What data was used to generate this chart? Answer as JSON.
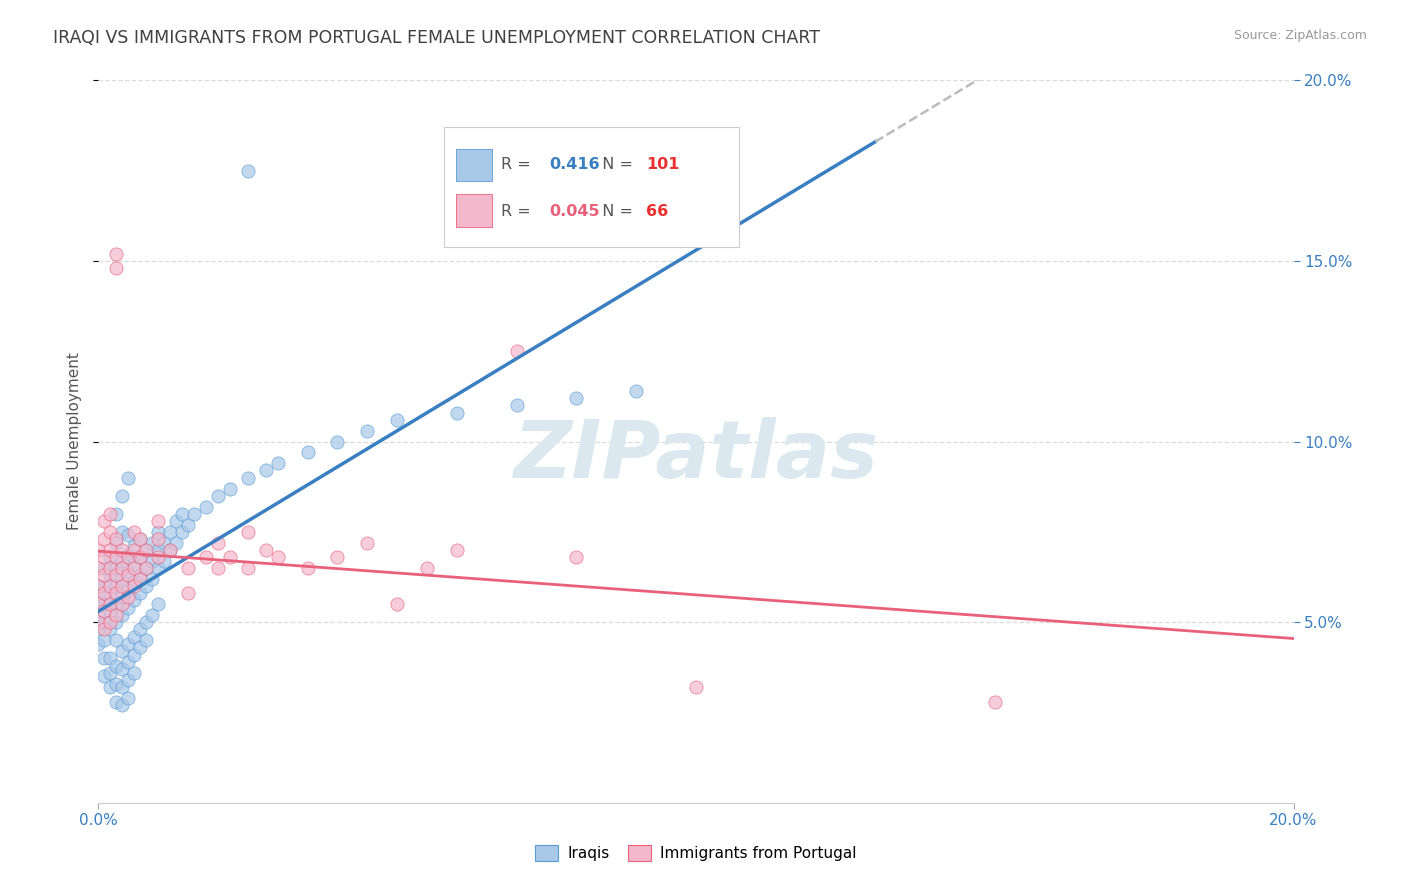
{
  "title": "IRAQI VS IMMIGRANTS FROM PORTUGAL FEMALE UNEMPLOYMENT CORRELATION CHART",
  "source": "Source: ZipAtlas.com",
  "ylabel": "Female Unemployment",
  "legend_iraqis": "Iraqis",
  "legend_portugal": "Immigrants from Portugal",
  "r_iraqis": "0.416",
  "n_iraqis": "101",
  "r_portugal": "0.045",
  "n_portugal": "66",
  "iraqis_color": "#a8c8e8",
  "portugal_color": "#f4b8cc",
  "iraqis_edge_color": "#5b9bd5",
  "portugal_edge_color": "#e8607a",
  "iraqis_line_color": "#3a7fc1",
  "portugal_line_color": "#e8607a",
  "dash_line_color": "#bbbbbb",
  "background_color": "#ffffff",
  "grid_color": "#d8d8d8",
  "title_color": "#404040",
  "right_axis_color": "#3a7fc1",
  "watermark_text": "ZIPatlas",
  "watermark_color": "#dce8f0",
  "xmin": 0.0,
  "xmax": 0.2,
  "ymin": 0.0,
  "ymax": 0.2,
  "yticks": [
    0.05,
    0.1,
    0.15,
    0.2
  ],
  "iraqis_scatter": [
    [
      0.0,
      0.048
    ],
    [
      0.0,
      0.052
    ],
    [
      0.0,
      0.056
    ],
    [
      0.0,
      0.06
    ],
    [
      0.0,
      0.044
    ],
    [
      0.001,
      0.05
    ],
    [
      0.001,
      0.055
    ],
    [
      0.001,
      0.06
    ],
    [
      0.001,
      0.045
    ],
    [
      0.001,
      0.065
    ],
    [
      0.001,
      0.04
    ],
    [
      0.001,
      0.035
    ],
    [
      0.002,
      0.048
    ],
    [
      0.002,
      0.053
    ],
    [
      0.002,
      0.058
    ],
    [
      0.002,
      0.063
    ],
    [
      0.002,
      0.068
    ],
    [
      0.002,
      0.04
    ],
    [
      0.002,
      0.036
    ],
    [
      0.002,
      0.032
    ],
    [
      0.003,
      0.05
    ],
    [
      0.003,
      0.055
    ],
    [
      0.003,
      0.06
    ],
    [
      0.003,
      0.065
    ],
    [
      0.003,
      0.045
    ],
    [
      0.003,
      0.038
    ],
    [
      0.003,
      0.033
    ],
    [
      0.003,
      0.028
    ],
    [
      0.003,
      0.072
    ],
    [
      0.003,
      0.08
    ],
    [
      0.004,
      0.052
    ],
    [
      0.004,
      0.057
    ],
    [
      0.004,
      0.062
    ],
    [
      0.004,
      0.067
    ],
    [
      0.004,
      0.042
    ],
    [
      0.004,
      0.037
    ],
    [
      0.004,
      0.032
    ],
    [
      0.004,
      0.027
    ],
    [
      0.004,
      0.075
    ],
    [
      0.004,
      0.085
    ],
    [
      0.005,
      0.054
    ],
    [
      0.005,
      0.059
    ],
    [
      0.005,
      0.064
    ],
    [
      0.005,
      0.069
    ],
    [
      0.005,
      0.074
    ],
    [
      0.005,
      0.044
    ],
    [
      0.005,
      0.039
    ],
    [
      0.005,
      0.034
    ],
    [
      0.005,
      0.029
    ],
    [
      0.005,
      0.09
    ],
    [
      0.006,
      0.056
    ],
    [
      0.006,
      0.061
    ],
    [
      0.006,
      0.066
    ],
    [
      0.006,
      0.071
    ],
    [
      0.006,
      0.046
    ],
    [
      0.006,
      0.041
    ],
    [
      0.006,
      0.036
    ],
    [
      0.007,
      0.058
    ],
    [
      0.007,
      0.063
    ],
    [
      0.007,
      0.068
    ],
    [
      0.007,
      0.073
    ],
    [
      0.007,
      0.048
    ],
    [
      0.007,
      0.043
    ],
    [
      0.008,
      0.06
    ],
    [
      0.008,
      0.065
    ],
    [
      0.008,
      0.07
    ],
    [
      0.008,
      0.05
    ],
    [
      0.008,
      0.045
    ],
    [
      0.009,
      0.062
    ],
    [
      0.009,
      0.067
    ],
    [
      0.009,
      0.072
    ],
    [
      0.009,
      0.052
    ],
    [
      0.01,
      0.065
    ],
    [
      0.01,
      0.07
    ],
    [
      0.01,
      0.075
    ],
    [
      0.01,
      0.055
    ],
    [
      0.011,
      0.067
    ],
    [
      0.011,
      0.072
    ],
    [
      0.012,
      0.07
    ],
    [
      0.012,
      0.075
    ],
    [
      0.013,
      0.072
    ],
    [
      0.013,
      0.078
    ],
    [
      0.014,
      0.075
    ],
    [
      0.014,
      0.08
    ],
    [
      0.015,
      0.077
    ],
    [
      0.016,
      0.08
    ],
    [
      0.018,
      0.082
    ],
    [
      0.02,
      0.085
    ],
    [
      0.022,
      0.087
    ],
    [
      0.025,
      0.09
    ],
    [
      0.028,
      0.092
    ],
    [
      0.03,
      0.094
    ],
    [
      0.035,
      0.097
    ],
    [
      0.04,
      0.1
    ],
    [
      0.045,
      0.103
    ],
    [
      0.05,
      0.106
    ],
    [
      0.06,
      0.108
    ],
    [
      0.07,
      0.11
    ],
    [
      0.08,
      0.112
    ],
    [
      0.09,
      0.114
    ],
    [
      0.025,
      0.175
    ]
  ],
  "portugal_scatter": [
    [
      0.0,
      0.05
    ],
    [
      0.0,
      0.055
    ],
    [
      0.0,
      0.06
    ],
    [
      0.0,
      0.065
    ],
    [
      0.0,
      0.07
    ],
    [
      0.001,
      0.048
    ],
    [
      0.001,
      0.053
    ],
    [
      0.001,
      0.058
    ],
    [
      0.001,
      0.063
    ],
    [
      0.001,
      0.068
    ],
    [
      0.001,
      0.073
    ],
    [
      0.001,
      0.078
    ],
    [
      0.002,
      0.05
    ],
    [
      0.002,
      0.055
    ],
    [
      0.002,
      0.06
    ],
    [
      0.002,
      0.065
    ],
    [
      0.002,
      0.07
    ],
    [
      0.002,
      0.075
    ],
    [
      0.002,
      0.08
    ],
    [
      0.003,
      0.052
    ],
    [
      0.003,
      0.058
    ],
    [
      0.003,
      0.063
    ],
    [
      0.003,
      0.068
    ],
    [
      0.003,
      0.073
    ],
    [
      0.003,
      0.148
    ],
    [
      0.003,
      0.152
    ],
    [
      0.004,
      0.055
    ],
    [
      0.004,
      0.06
    ],
    [
      0.004,
      0.065
    ],
    [
      0.004,
      0.07
    ],
    [
      0.005,
      0.057
    ],
    [
      0.005,
      0.063
    ],
    [
      0.005,
      0.068
    ],
    [
      0.006,
      0.06
    ],
    [
      0.006,
      0.065
    ],
    [
      0.006,
      0.07
    ],
    [
      0.006,
      0.075
    ],
    [
      0.007,
      0.062
    ],
    [
      0.007,
      0.068
    ],
    [
      0.007,
      0.073
    ],
    [
      0.008,
      0.065
    ],
    [
      0.008,
      0.07
    ],
    [
      0.01,
      0.068
    ],
    [
      0.01,
      0.073
    ],
    [
      0.01,
      0.078
    ],
    [
      0.012,
      0.07
    ],
    [
      0.015,
      0.058
    ],
    [
      0.015,
      0.065
    ],
    [
      0.018,
      0.068
    ],
    [
      0.02,
      0.072
    ],
    [
      0.02,
      0.065
    ],
    [
      0.022,
      0.068
    ],
    [
      0.025,
      0.075
    ],
    [
      0.025,
      0.065
    ],
    [
      0.028,
      0.07
    ],
    [
      0.03,
      0.068
    ],
    [
      0.035,
      0.065
    ],
    [
      0.04,
      0.068
    ],
    [
      0.045,
      0.072
    ],
    [
      0.05,
      0.055
    ],
    [
      0.055,
      0.065
    ],
    [
      0.06,
      0.07
    ],
    [
      0.07,
      0.125
    ],
    [
      0.08,
      0.068
    ],
    [
      0.1,
      0.032
    ],
    [
      0.15,
      0.028
    ]
  ]
}
